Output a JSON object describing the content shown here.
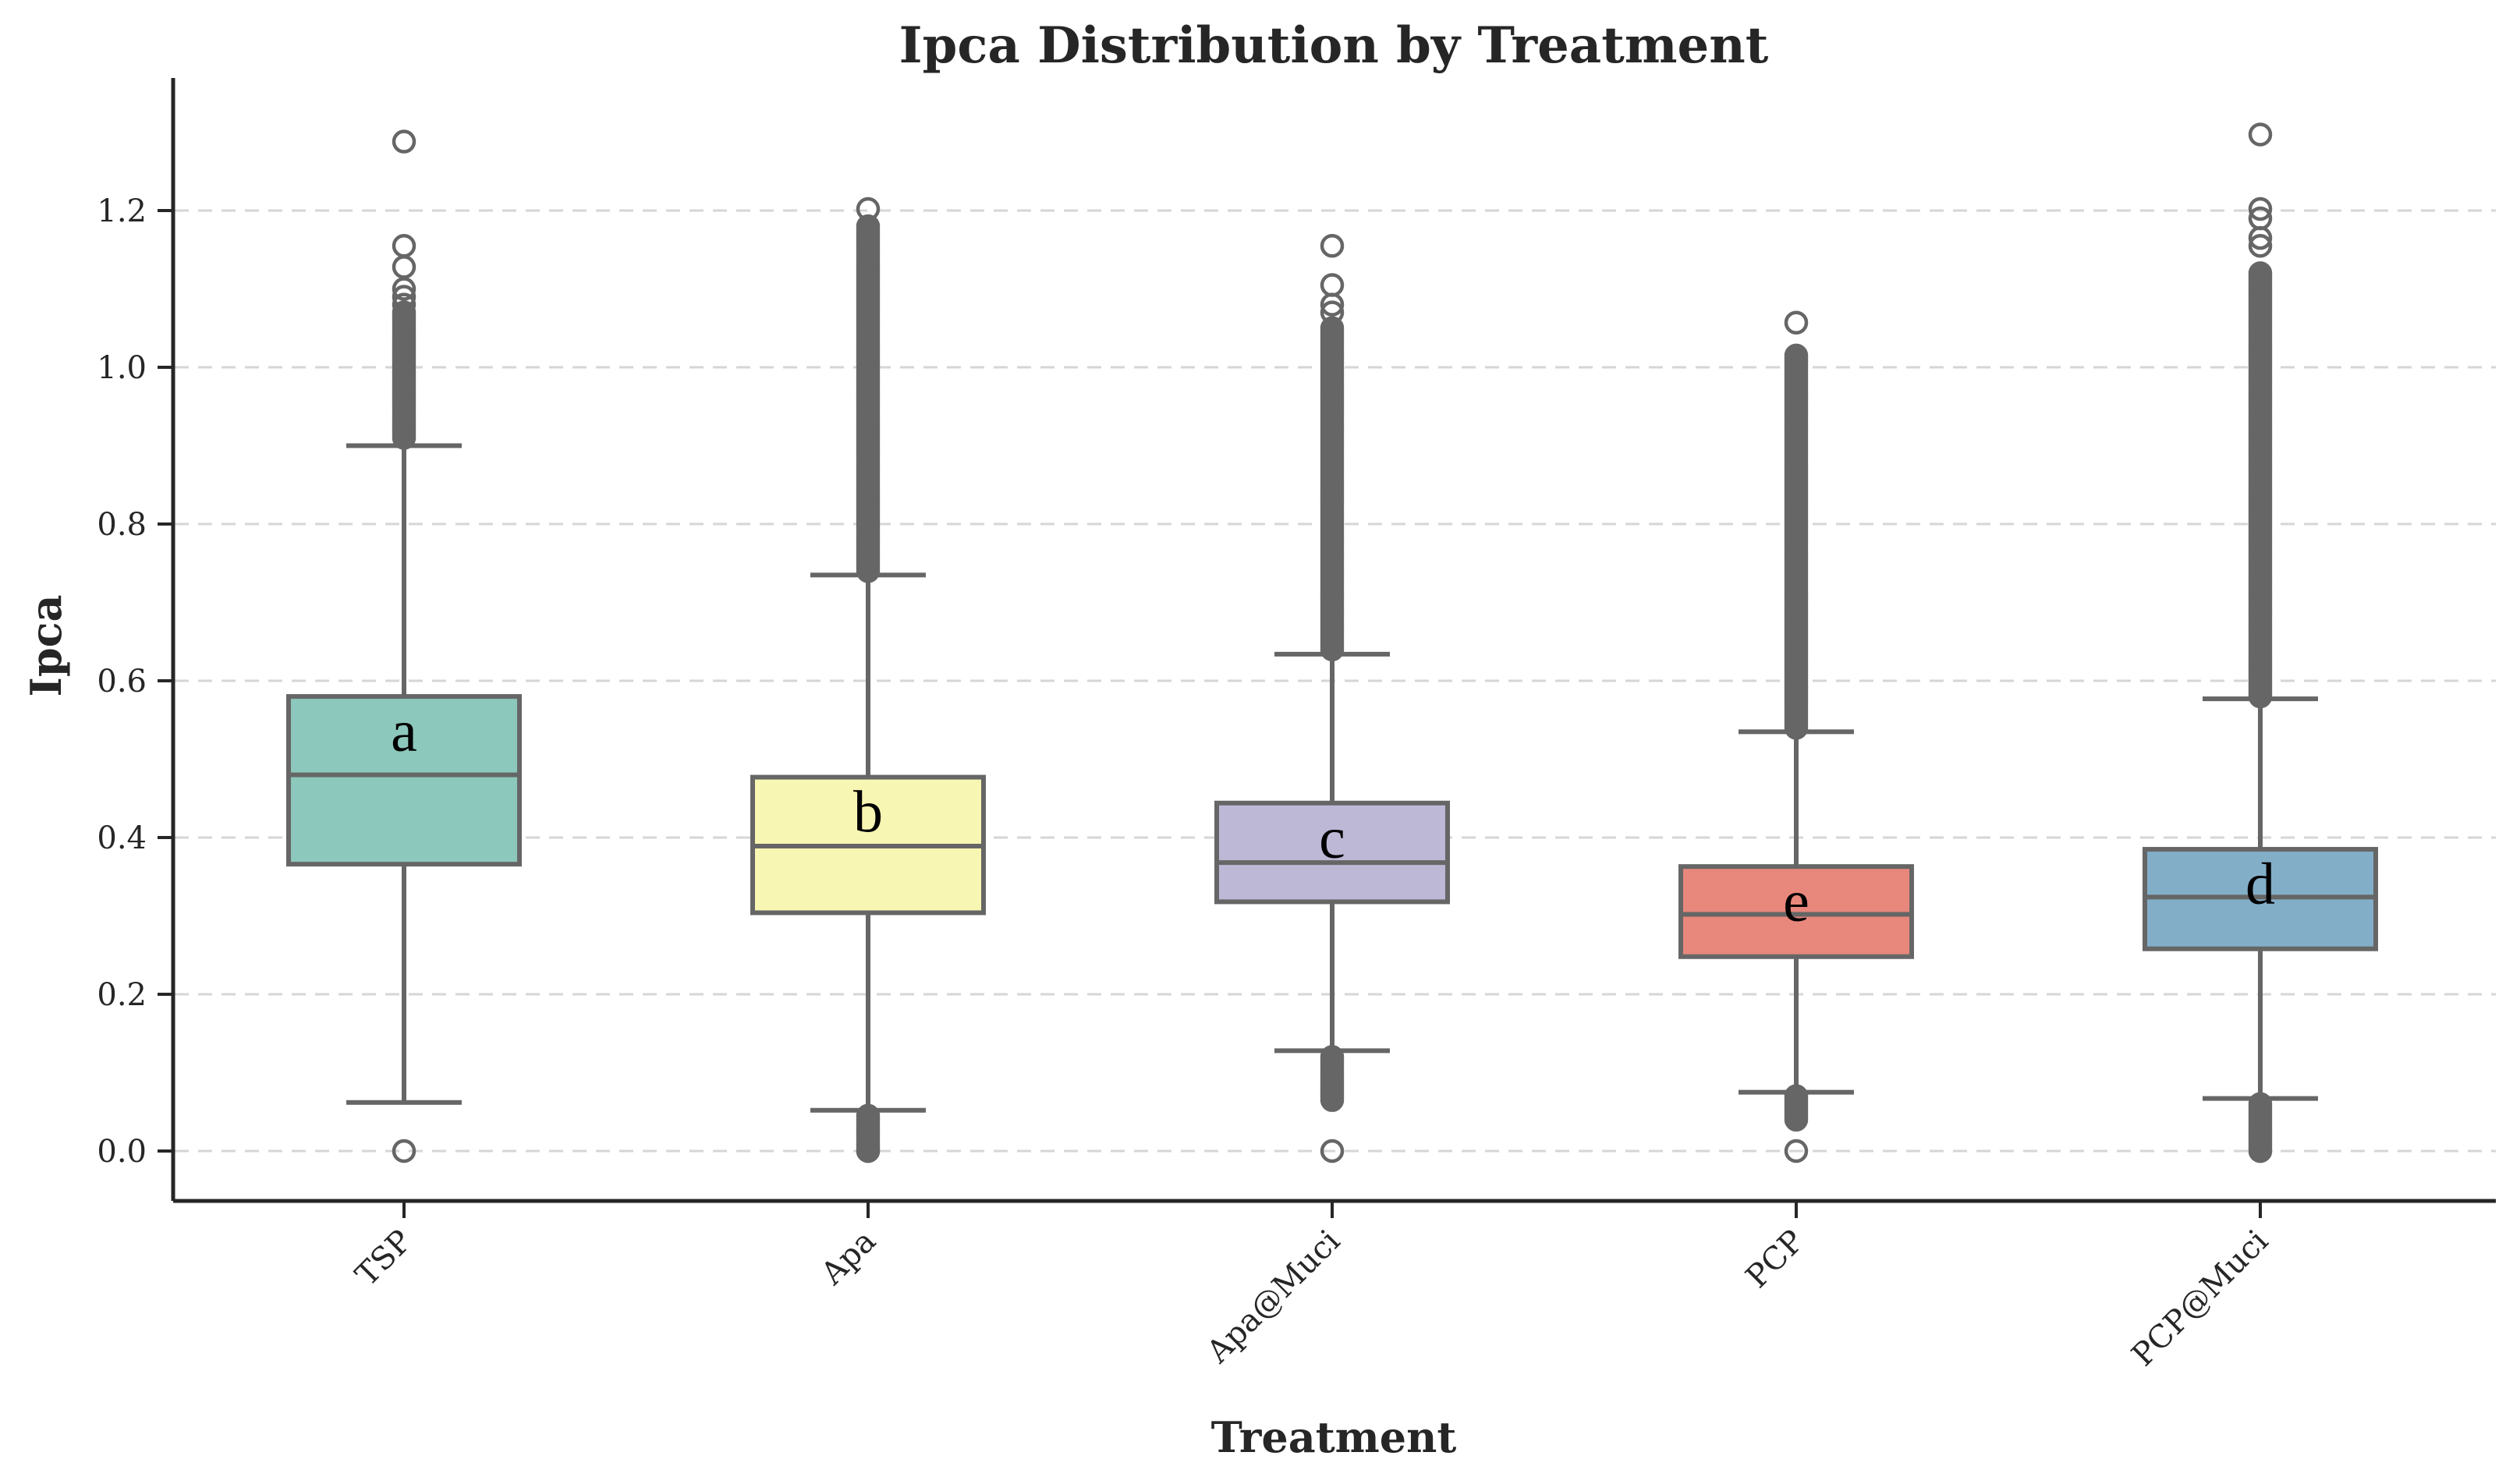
{
  "chart_data": {
    "type": "box",
    "title": "Ipca Distribution by Treatment",
    "xlabel": "Treatment",
    "ylabel": "Ipca",
    "ylim": [
      -0.065,
      1.36
    ],
    "y_ticks": [
      0.0,
      0.2,
      0.4,
      0.6,
      0.8,
      1.0,
      1.2
    ],
    "y_tick_labels": [
      "0.0",
      "0.2",
      "0.4",
      "0.6",
      "0.8",
      "1.0",
      "1.2"
    ],
    "grid": "y",
    "categories": [
      "TSP",
      "Apa",
      "Apa@Muci",
      "PCP",
      "PCP@Muci"
    ],
    "series": [
      {
        "category": "TSP",
        "color": "#8dc8bc",
        "q1": 0.366,
        "median": 0.48,
        "q3": 0.58,
        "whisker_low": 0.062,
        "whisker_high": 0.9,
        "letter": "a",
        "outliers_low": [
          0.0
        ],
        "outliers_high": [
          1.288,
          1.155,
          1.128,
          1.1,
          1.09,
          1.08
        ],
        "outlier_dense_high": [
          0.91,
          1.07
        ]
      },
      {
        "category": "Apa",
        "color": "#f8f6b3",
        "q1": 0.304,
        "median": 0.389,
        "q3": 0.477,
        "whisker_low": 0.052,
        "whisker_high": 0.735,
        "letter": "b",
        "outliers_low": [
          0.0
        ],
        "outlier_dense_low": [
          0.0,
          0.045
        ],
        "outliers_high": [
          1.202
        ],
        "outlier_dense_high": [
          0.74,
          1.18
        ]
      },
      {
        "category": "Apa@Muci",
        "color": "#bcb8d6",
        "q1": 0.318,
        "median": 0.368,
        "q3": 0.444,
        "whisker_low": 0.128,
        "whisker_high": 0.634,
        "letter": "c",
        "outliers_low": [
          0.0
        ],
        "outlier_dense_low": [
          0.065,
          0.12
        ],
        "outliers_high": [
          1.155,
          1.105,
          1.08,
          1.07
        ],
        "outlier_dense_high": [
          0.64,
          1.05
        ]
      },
      {
        "category": "PCP",
        "color": "#e8877c",
        "q1": 0.248,
        "median": 0.302,
        "q3": 0.363,
        "whisker_low": 0.075,
        "whisker_high": 0.535,
        "letter": "e",
        "outliers_low": [
          0.0
        ],
        "outlier_dense_low": [
          0.04,
          0.07
        ],
        "outliers_high": [
          1.057
        ],
        "outlier_dense_high": [
          0.54,
          1.015
        ]
      },
      {
        "category": "PCP@Muci",
        "color": "#83aec8",
        "q1": 0.258,
        "median": 0.324,
        "q3": 0.385,
        "whisker_low": 0.067,
        "whisker_high": 0.577,
        "letter": "d",
        "outliers_low": [
          0.0
        ],
        "outlier_dense_low": [
          0.0,
          0.06
        ],
        "outliers_high": [
          1.297,
          1.202,
          1.19,
          1.165,
          1.155
        ],
        "outlier_dense_high": [
          0.58,
          1.12
        ]
      }
    ]
  }
}
